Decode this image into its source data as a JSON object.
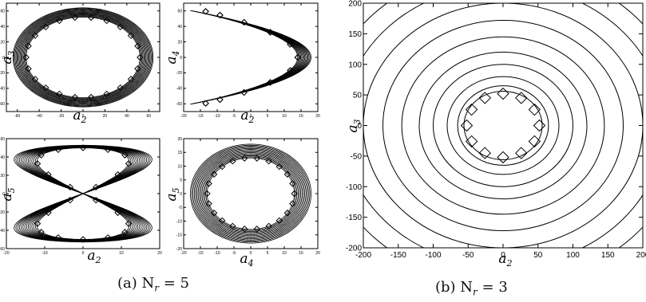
{
  "figure": {
    "caption_a": "(a) N",
    "caption_a_sub": "r",
    "caption_a_tail": " = 5",
    "caption_b": "(b) N",
    "caption_b_sub": "r",
    "caption_b_tail": " = 3"
  },
  "chart_data": [
    {
      "id": "a-top-left",
      "type": "line",
      "xlabel": "a2",
      "ylabel": "a3",
      "xlim": [
        -70,
        70
      ],
      "ylim": [
        -70,
        70
      ],
      "xticks": [
        -60,
        -40,
        -20,
        0,
        20,
        40,
        60
      ],
      "yticks": [
        -60,
        -40,
        -20,
        0,
        20,
        40,
        60
      ],
      "series": [
        {
          "kind": "orbit-bundle",
          "shape": "circle",
          "inner_radius": 52,
          "outer_radius": 64,
          "count": 14
        },
        {
          "kind": "markers",
          "marker": "diamond",
          "shape": "circle",
          "radius": 52,
          "count": 22
        }
      ]
    },
    {
      "id": "a-top-right",
      "type": "line",
      "xlabel": "a2",
      "ylabel": "a4",
      "xlim": [
        -20,
        20
      ],
      "ylim": [
        -70,
        70
      ],
      "xticks": [
        -20,
        -15,
        -10,
        -5,
        0,
        5,
        10,
        15,
        20
      ],
      "yticks": [
        -60,
        -40,
        -20,
        0,
        20,
        40,
        60
      ],
      "series": [
        {
          "kind": "orbit-bundle",
          "shape": "parabola",
          "inner_amplitude": 14,
          "outer_amplitude": 18,
          "count": 14
        },
        {
          "kind": "markers",
          "marker": "diamond",
          "shape": "parabola",
          "amplitude": 14,
          "count": 22
        }
      ]
    },
    {
      "id": "a-bottom-left",
      "type": "line",
      "xlabel": "a2",
      "ylabel": "a5",
      "xlim": [
        -20,
        20
      ],
      "ylim": [
        -60,
        60
      ],
      "xticks": [
        -20,
        -10,
        0,
        10,
        20
      ],
      "yticks": [
        -60,
        -40,
        -20,
        0,
        20,
        40,
        60
      ],
      "series": [
        {
          "kind": "orbit-bundle",
          "shape": "figure-eight",
          "inner_amplitude": 12,
          "outer_amplitude": 18,
          "count": 14
        },
        {
          "kind": "markers",
          "marker": "diamond",
          "shape": "figure-eight",
          "amplitude": 12,
          "count": 22
        }
      ]
    },
    {
      "id": "a-bottom-right",
      "type": "line",
      "xlabel": "a4",
      "ylabel": "a5",
      "xlim": [
        -20,
        20
      ],
      "ylim": [
        -20,
        20
      ],
      "xticks": [
        -20,
        -15,
        -10,
        -5,
        0,
        5,
        10,
        15,
        20
      ],
      "yticks": [
        -20,
        -15,
        -10,
        -5,
        0,
        5,
        10,
        15,
        20
      ],
      "series": [
        {
          "kind": "orbit-bundle",
          "shape": "circle",
          "inner_radius": 13,
          "outer_radius": 18,
          "count": 14
        },
        {
          "kind": "markers",
          "marker": "diamond",
          "shape": "circle",
          "radius": 13,
          "count": 22
        }
      ]
    },
    {
      "id": "b",
      "type": "line",
      "xlabel": "a2",
      "ylabel": "a3",
      "xlim": [
        -200,
        200
      ],
      "ylim": [
        -200,
        200
      ],
      "xticks": [
        -200,
        -150,
        -100,
        -50,
        0,
        50,
        100,
        150,
        200
      ],
      "yticks": [
        -200,
        -150,
        -100,
        -50,
        0,
        50,
        100,
        150,
        200
      ],
      "series": [
        {
          "kind": "contours",
          "shape": "circle",
          "radii": [
            56,
            65,
            80,
            100,
            120,
            145,
            172,
            200,
            230,
            260
          ]
        },
        {
          "kind": "markers",
          "marker": "diamond",
          "shape": "circle",
          "radius": 52,
          "count": 12
        }
      ]
    }
  ]
}
